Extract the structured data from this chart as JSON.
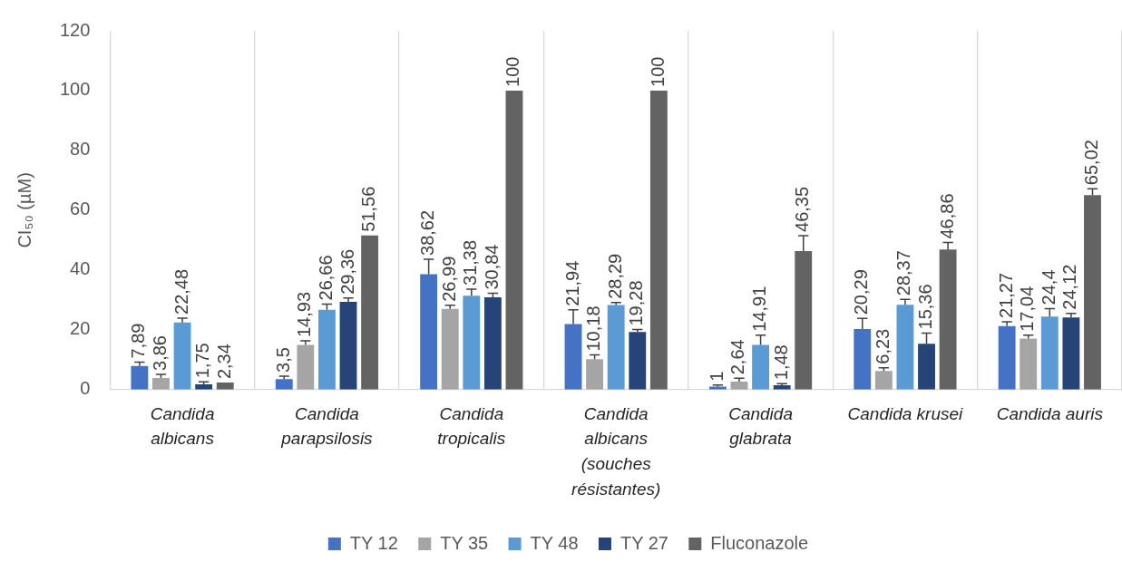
{
  "chart_data": {
    "type": "bar",
    "ylabel": "CI₅₀ (µM)",
    "categories": [
      "Candida albicans",
      "Candida parapsilosis",
      "Candida tropicalis",
      "Candida albicans (souches résistantes)",
      "Candida glabrata",
      "Candida krusei",
      "Candida auris"
    ],
    "series": [
      {
        "name": "TY 12",
        "color": "#4472c4",
        "values": [
          7.89,
          3.5,
          38.62,
          21.94,
          1,
          20.29,
          21.27
        ],
        "errors": [
          [
            7.89,
            9.2
          ],
          [
            3.5,
            4.5
          ],
          [
            38.62,
            43.6
          ],
          [
            21.94,
            26.7
          ],
          [
            1,
            1.5
          ],
          [
            20.29,
            23.8
          ],
          [
            21.27,
            22.7
          ]
        ],
        "value_labels": [
          "7,89",
          "3,5",
          "38,62",
          "21,94",
          "1",
          "20,29",
          "21,27"
        ]
      },
      {
        "name": "TY 35",
        "color": "#a5a5a5",
        "values": [
          3.86,
          14.93,
          26.99,
          10.18,
          2.64,
          6.23,
          17.04
        ],
        "errors": [
          [
            3.86,
            5.1
          ],
          [
            14.93,
            16.3
          ],
          [
            26.99,
            28.2
          ],
          [
            10.18,
            11.6
          ],
          [
            2.64,
            3.8
          ],
          [
            6.23,
            7.3
          ],
          [
            17.04,
            18.2
          ]
        ],
        "value_labels": [
          "3,86",
          "14,93",
          "26,99",
          "10,18",
          "2,64",
          "6,23",
          "17,04"
        ]
      },
      {
        "name": "TY 48",
        "color": "#5b9bd5",
        "values": [
          22.48,
          26.66,
          31.38,
          28.29,
          14.91,
          28.37,
          24.4
        ],
        "errors": [
          [
            22.48,
            23.9
          ],
          [
            26.66,
            28.6
          ],
          [
            31.38,
            33.6
          ],
          [
            28.29,
            29.1
          ],
          [
            14.91,
            18.2
          ],
          [
            28.37,
            30.2
          ],
          [
            24.4,
            27.1
          ]
        ],
        "value_labels": [
          "22,48",
          "26,66",
          "31,38",
          "28,29",
          "14,91",
          "28,37",
          "24,4"
        ]
      },
      {
        "name": "TY 27",
        "color": "#264478",
        "values": [
          1.75,
          29.36,
          30.84,
          19.28,
          1.48,
          15.36,
          24.12
        ],
        "errors": [
          [
            1.75,
            2.6
          ],
          [
            29.36,
            30.6
          ],
          [
            30.84,
            32.2
          ],
          [
            19.28,
            20.1
          ],
          [
            1.48,
            2.0
          ],
          [
            15.36,
            18.9
          ],
          [
            24.12,
            25.5
          ]
        ],
        "value_labels": [
          "1,75",
          "29,36",
          "30,84",
          "19,28",
          "1,48",
          "15,36",
          "24,12"
        ]
      },
      {
        "name": "Fluconazole",
        "color": "#636363",
        "values": [
          2.34,
          51.56,
          100,
          100,
          46.35,
          46.86,
          65.02
        ],
        "errors": [
          null,
          null,
          null,
          null,
          [
            46.35,
            51.5
          ],
          [
            46.86,
            49.2
          ],
          [
            65.02,
            67.2
          ]
        ],
        "value_labels": [
          "2,34",
          "51,56",
          "100",
          "100",
          "46,35",
          "46,86",
          "65,02"
        ]
      }
    ],
    "ylim": [
      0,
      120
    ],
    "yticks": [
      0,
      20,
      40,
      60,
      80,
      100,
      120
    ],
    "grid": "x",
    "legend": "bottom"
  }
}
